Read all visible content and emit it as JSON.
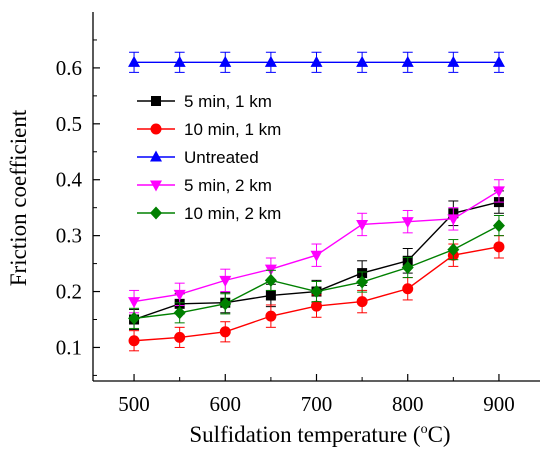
{
  "chart_data": {
    "type": "line",
    "xlabel_main": "Sulfidation temperature (",
    "xlabel_sup": "o",
    "xlabel_tail": "C)",
    "ylabel": "Friction coefficient",
    "xlim": [
      455,
      945
    ],
    "ylim": [
      0.04,
      0.7
    ],
    "grid": false,
    "legend_position": "top-left",
    "x_ticks": [
      500,
      600,
      700,
      800,
      900
    ],
    "x_tick_labels": [
      "500",
      "600",
      "700",
      "800",
      "900"
    ],
    "y_ticks": [
      0.1,
      0.2,
      0.3,
      0.4,
      0.5,
      0.6
    ],
    "y_tick_labels": [
      "0.1",
      "0.2",
      "0.3",
      "0.4",
      "0.5",
      "0.6"
    ],
    "x": [
      500,
      550,
      600,
      650,
      700,
      750,
      800,
      850,
      900
    ],
    "series": [
      {
        "name": "5 min, 1 km",
        "color": "#000000",
        "marker": "square",
        "values": [
          0.15,
          0.178,
          0.18,
          0.193,
          0.2,
          0.233,
          0.255,
          0.34,
          0.36
        ],
        "errors": [
          0.018,
          0.018,
          0.018,
          0.02,
          0.02,
          0.022,
          0.022,
          0.022,
          0.02
        ]
      },
      {
        "name": "10 min, 1 km",
        "color": "#ff0000",
        "marker": "circle",
        "values": [
          0.112,
          0.118,
          0.128,
          0.156,
          0.174,
          0.182,
          0.205,
          0.265,
          0.28
        ],
        "errors": [
          0.018,
          0.018,
          0.018,
          0.02,
          0.02,
          0.02,
          0.02,
          0.02,
          0.02
        ]
      },
      {
        "name": "Untreated",
        "color": "#0000ff",
        "marker": "triangle-up",
        "values": [
          0.61,
          0.61,
          0.61,
          0.61,
          0.61,
          0.61,
          0.61,
          0.61,
          0.61
        ],
        "errors": [
          0.018,
          0.018,
          0.018,
          0.018,
          0.018,
          0.018,
          0.018,
          0.018,
          0.018
        ]
      },
      {
        "name": "5 min, 2 km",
        "color": "#ff00ff",
        "marker": "triangle-down",
        "values": [
          0.182,
          0.195,
          0.22,
          0.24,
          0.265,
          0.32,
          0.325,
          0.33,
          0.38
        ],
        "errors": [
          0.02,
          0.02,
          0.02,
          0.02,
          0.02,
          0.02,
          0.02,
          0.02,
          0.02
        ]
      },
      {
        "name": "10 min, 2 km",
        "color": "#008000",
        "marker": "diamond",
        "values": [
          0.152,
          0.162,
          0.178,
          0.22,
          0.2,
          0.217,
          0.243,
          0.275,
          0.318
        ],
        "errors": [
          0.018,
          0.018,
          0.018,
          0.018,
          0.018,
          0.018,
          0.018,
          0.018,
          0.018
        ]
      }
    ]
  }
}
